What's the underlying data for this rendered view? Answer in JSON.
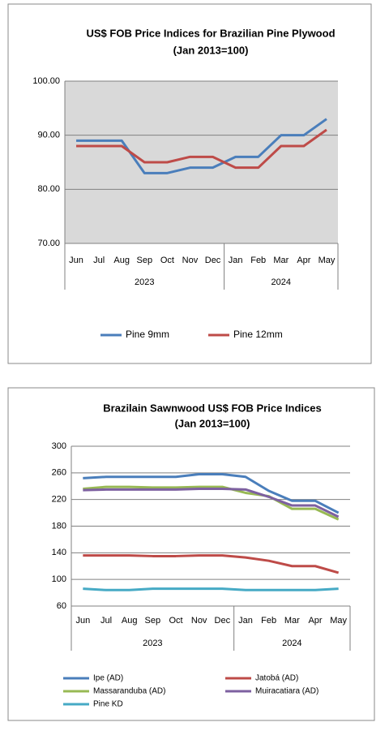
{
  "chart_data": [
    {
      "type": "line",
      "title": "US$ FOB Price Indices for Brazilian  Pine Plywood",
      "subtitle": "(Jan 2013=100)",
      "categories": [
        "Jun",
        "Jul",
        "Aug",
        "Sep",
        "Oct",
        "Nov",
        "Dec",
        "Jan",
        "Feb",
        "Mar",
        "Apr",
        "May"
      ],
      "groups": [
        {
          "label": "2023",
          "count": 7
        },
        {
          "label": "2024",
          "count": 5
        }
      ],
      "series": [
        {
          "name": "Pine 9mm",
          "color": "#4a7ebb",
          "values": [
            89,
            89,
            89,
            83,
            83,
            84,
            84,
            86,
            86,
            90,
            90,
            93
          ]
        },
        {
          "name": "Pine 12mm",
          "color": "#be4b48",
          "values": [
            88,
            88,
            88,
            85,
            85,
            86,
            86,
            84,
            84,
            88,
            88,
            91
          ]
        }
      ],
      "ylim": [
        70,
        100
      ],
      "yticks": [
        {
          "value": 70,
          "label": "70.00"
        },
        {
          "value": 80,
          "label": "80.00"
        },
        {
          "value": 90,
          "label": "90.00"
        },
        {
          "value": 100,
          "label": "100.00"
        }
      ],
      "grid": true,
      "plot_background": "#d9d9d9",
      "legend": "bottom"
    },
    {
      "type": "line",
      "title": "Brazilain Sawnwood US$ FOB Price Indices",
      "subtitle": "(Jan 2013=100)",
      "categories": [
        "Jun",
        "Jul",
        "Aug",
        "Sep",
        "Oct",
        "Nov",
        "Dec",
        "Jan",
        "Feb",
        "Mar",
        "Apr",
        "May"
      ],
      "groups": [
        {
          "label": "2023",
          "count": 7
        },
        {
          "label": "2024",
          "count": 5
        }
      ],
      "series": [
        {
          "name": "Ipe (AD)",
          "color": "#4a7ebb",
          "values": [
            252,
            254,
            254,
            254,
            254,
            258,
            258,
            254,
            233,
            218,
            218,
            200
          ]
        },
        {
          "name": "Jatobá (AD)",
          "color": "#be4b48",
          "values": [
            136,
            136,
            136,
            135,
            135,
            136,
            136,
            133,
            128,
            120,
            120,
            110
          ]
        },
        {
          "name": "Massaranduba (AD)",
          "color": "#98b954",
          "values": [
            236,
            239,
            239,
            238,
            238,
            239,
            239,
            230,
            225,
            206,
            206,
            190
          ]
        },
        {
          "name": "Muiracatiara (AD)",
          "color": "#7d60a0",
          "values": [
            234,
            235,
            235,
            235,
            235,
            236,
            236,
            235,
            224,
            211,
            211,
            194
          ]
        },
        {
          "name": "Pine KD",
          "color": "#46aac5",
          "values": [
            86,
            84,
            84,
            86,
            86,
            86,
            86,
            84,
            84,
            84,
            84,
            86
          ]
        }
      ],
      "ylim": [
        60,
        300
      ],
      "yticks": [
        60,
        100,
        140,
        180,
        220,
        260,
        300
      ],
      "grid": true,
      "plot_background": "#ffffff",
      "legend": "bottom"
    }
  ]
}
